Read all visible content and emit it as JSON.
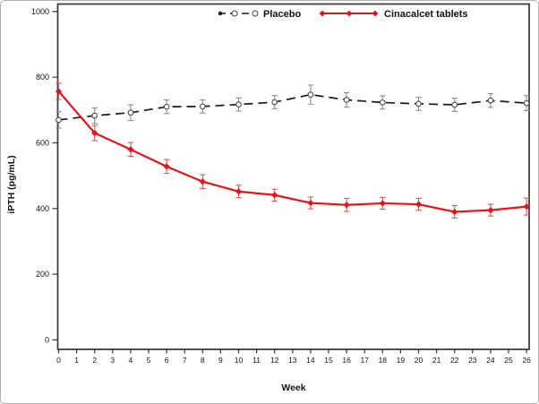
{
  "style": {
    "frame_color": "#3f3f3f",
    "axis_color": "#333333",
    "background": "#ffffff"
  },
  "chart_data": {
    "type": "line",
    "title": "",
    "xlabel": "Week",
    "ylabel": "iPTH  (pg/mL)",
    "x_ticks": [
      0,
      1,
      2,
      3,
      4,
      5,
      6,
      7,
      8,
      9,
      10,
      11,
      12,
      13,
      14,
      15,
      16,
      17,
      18,
      19,
      20,
      21,
      22,
      23,
      24,
      25,
      26
    ],
    "y_ticks": [
      0,
      200,
      400,
      600,
      800,
      1000
    ],
    "xlim": [
      0,
      26
    ],
    "ylim": [
      0,
      1000
    ],
    "grid": false,
    "error_bars": true,
    "legend_position": "top-inside",
    "x": [
      0,
      2,
      4,
      6,
      8,
      10,
      12,
      14,
      16,
      18,
      20,
      22,
      24,
      26
    ],
    "series": [
      {
        "name": "Placebo",
        "line": "dashed",
        "marker": "open-circle",
        "color": "#1a1a1a",
        "marker_stroke": "#4a4a4a",
        "error_color": "#8c8c8c",
        "x": [
          0,
          2,
          4,
          6,
          8,
          10,
          12,
          14,
          16,
          18,
          20,
          22,
          24,
          26
        ],
        "y": [
          670,
          683,
          692,
          710,
          711,
          717,
          724,
          747,
          731,
          723,
          719,
          716,
          729,
          721
        ],
        "err": [
          25,
          24,
          24,
          21,
          20,
          20,
          20,
          29,
          22,
          20,
          20,
          20,
          21,
          23
        ]
      },
      {
        "name": "Cinacalcet tablets",
        "line": "solid",
        "marker": "filled-diamond",
        "color": "#e8121a",
        "marker_stroke": "#e8121a",
        "error_color": "#e05555",
        "x": [
          0,
          2,
          4,
          6,
          8,
          10,
          12,
          14,
          16,
          18,
          20,
          22,
          24,
          26
        ],
        "y": [
          757,
          630,
          580,
          528,
          482,
          452,
          441,
          417,
          411,
          416,
          413,
          390,
          395,
          406
        ],
        "err": [
          25,
          23,
          21,
          21,
          21,
          19,
          18,
          18,
          20,
          18,
          18,
          19,
          18,
          26
        ]
      }
    ]
  }
}
